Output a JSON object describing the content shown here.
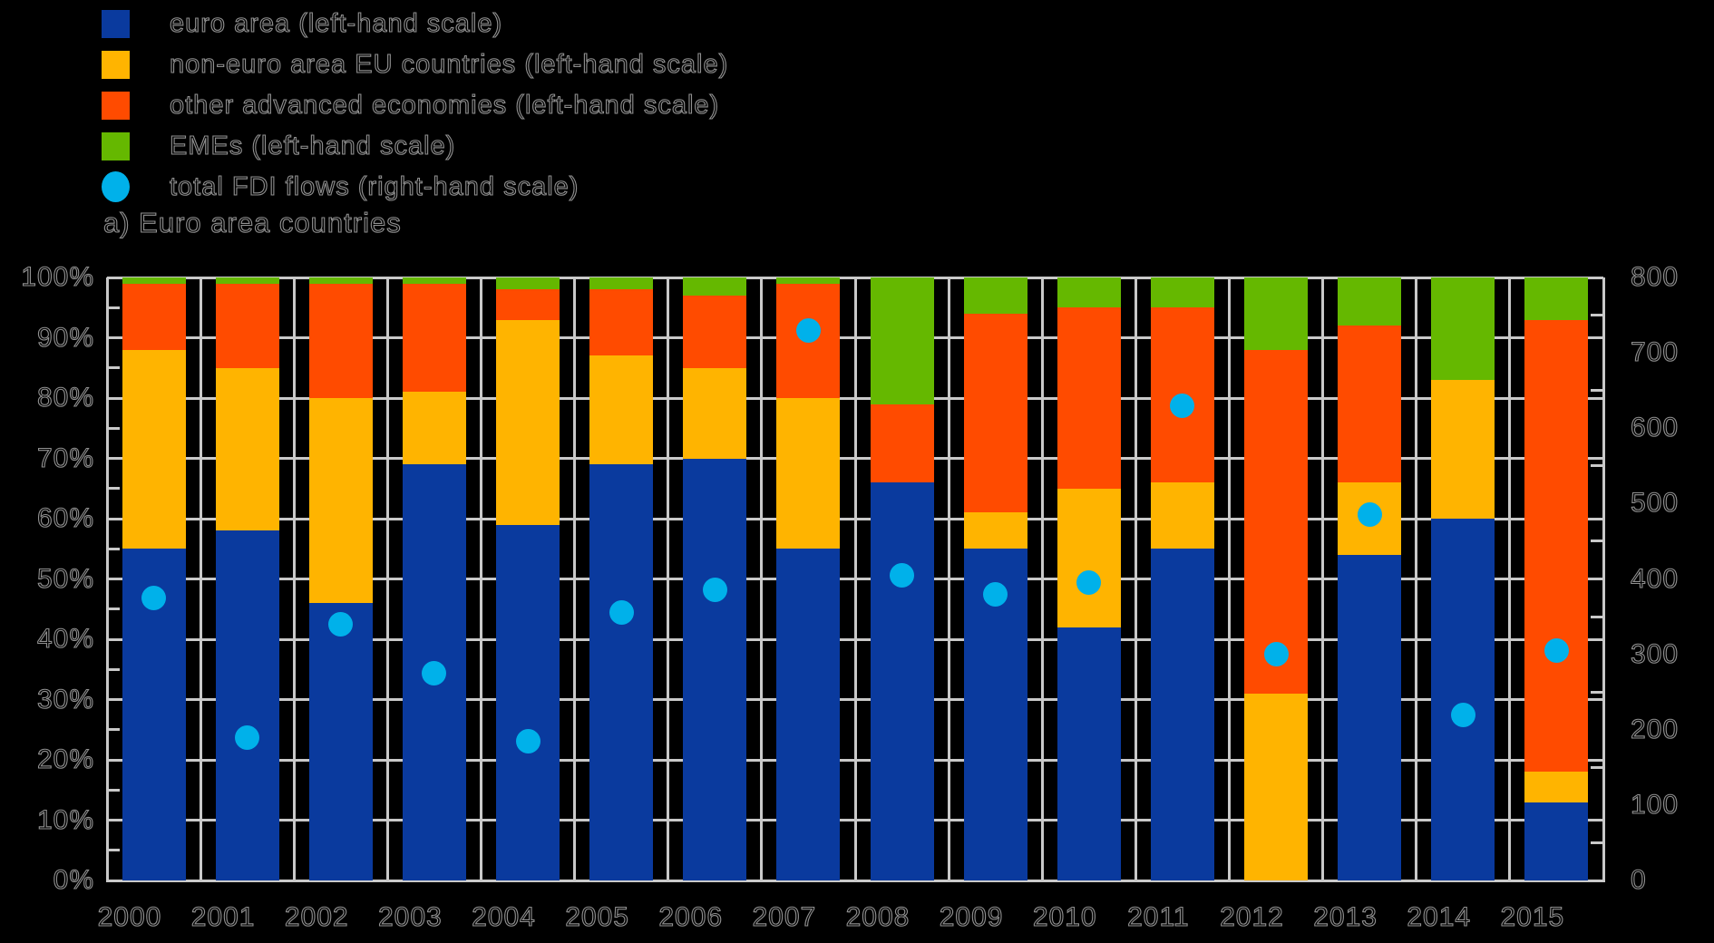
{
  "page": {
    "background": "#000000"
  },
  "panel_title": "a) Euro area countries",
  "legend": {
    "position": "top-left",
    "items": [
      {
        "label": "euro area (left-hand scale)",
        "color": "#0A3A9E",
        "shape": "square"
      },
      {
        "label": "non-euro area EU countries (left-hand scale)",
        "color": "#FFB400",
        "shape": "square"
      },
      {
        "label": "other advanced economies (left-hand scale)",
        "color": "#FF4B00",
        "shape": "square"
      },
      {
        "label": "EMEs (left-hand scale)",
        "color": "#65B800",
        "shape": "square"
      },
      {
        "label": "total FDI flows (right-hand scale)",
        "color": "#00B1EA",
        "shape": "circle"
      }
    ]
  },
  "chart_data": {
    "type": "bar",
    "subtype": "100%-stacked bars with scatter overlay on secondary axis",
    "categories": [
      "2000",
      "2001",
      "2002",
      "2003",
      "2004",
      "2005",
      "2006",
      "2007",
      "2008",
      "2009",
      "2010",
      "2011",
      "2012",
      "2013",
      "2014",
      "2015"
    ],
    "series": [
      {
        "name": "euro area (left-hand scale)",
        "color": "#0A3A9E",
        "values": [
          55,
          58,
          46,
          69,
          59,
          69,
          70,
          55,
          66,
          55,
          42,
          55,
          0,
          54,
          60,
          13
        ]
      },
      {
        "name": "non-euro area EU countries (left-hand scale)",
        "color": "#FFB400",
        "values": [
          33,
          27,
          34,
          12,
          34,
          18,
          15,
          25,
          0,
          6,
          23,
          11,
          31,
          12,
          23,
          5
        ]
      },
      {
        "name": "other advanced economies (left-hand scale)",
        "color": "#FF4B00",
        "values": [
          11,
          14,
          19,
          18,
          5,
          11,
          12,
          19,
          13,
          33,
          30,
          29,
          57,
          26,
          0,
          75
        ]
      },
      {
        "name": "EMEs (left-hand scale)",
        "color": "#65B800",
        "values": [
          1,
          1,
          1,
          1,
          2,
          2,
          3,
          1,
          21,
          6,
          5,
          5,
          12,
          8,
          17,
          7
        ]
      }
    ],
    "scatter_series": {
      "name": "total FDI flows (right-hand scale)",
      "color": "#00B1EA",
      "values": [
        375,
        190,
        340,
        275,
        185,
        355,
        385,
        730,
        405,
        380,
        395,
        630,
        300,
        485,
        220,
        305
      ]
    },
    "left_axis": {
      "unit": "%",
      "min": 0,
      "max": 100,
      "step": 10,
      "labels": [
        "0%",
        "10%",
        "20%",
        "30%",
        "40%",
        "50%",
        "60%",
        "70%",
        "80%",
        "90%",
        "100%"
      ]
    },
    "right_axis": {
      "min": 0,
      "max": 800,
      "step": 100,
      "labels": [
        "0",
        "100",
        "200",
        "300",
        "400",
        "500",
        "600",
        "700",
        "800"
      ]
    },
    "grid": {
      "horizontal": "every 10%",
      "vertical": "category boundaries",
      "color": "#C9C9C9"
    },
    "ylim": [
      0,
      100
    ],
    "y2lim": [
      0,
      800
    ],
    "legend_position": "top-left"
  }
}
